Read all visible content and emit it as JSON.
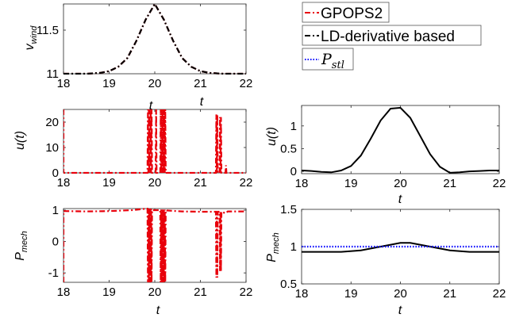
{
  "legend": {
    "entries": [
      {
        "label": "GPOPS2",
        "color": "#e8000b",
        "dash": "dashdot"
      },
      {
        "label": "LD-derivative based",
        "color": "#000000",
        "dash": "dashdot"
      },
      {
        "label_main": "P",
        "label_sub": "stl",
        "color": "#0000ff",
        "dash": "dot"
      }
    ]
  },
  "chart_data": [
    {
      "id": "vwind",
      "type": "line",
      "xlabel": "t",
      "ylabel_main": "v",
      "ylabel_sub": "wind",
      "xlim": [
        18,
        22
      ],
      "ylim": [
        11,
        11.8
      ],
      "xticks": [
        18,
        19,
        20,
        21,
        22
      ],
      "yticks": [
        11,
        11.5
      ],
      "series": [
        {
          "name": "GPOPS2",
          "color": "#e8000b",
          "dash": "dashdot",
          "x": [
            18,
            18.5,
            18.8,
            19.0,
            19.2,
            19.4,
            19.6,
            19.8,
            20.0,
            20.2,
            20.4,
            20.6,
            20.8,
            21.0,
            21.2,
            21.5,
            22
          ],
          "y": [
            11.0,
            11.0,
            11.01,
            11.03,
            11.08,
            11.18,
            11.38,
            11.62,
            11.8,
            11.62,
            11.38,
            11.18,
            11.08,
            11.03,
            11.01,
            11.0,
            11.0
          ]
        },
        {
          "name": "LD-derivative based",
          "color": "#000000",
          "dash": "dashdot",
          "x": [
            18,
            18.5,
            18.8,
            19.0,
            19.2,
            19.4,
            19.6,
            19.8,
            20.0,
            20.2,
            20.4,
            20.6,
            20.8,
            21.0,
            21.2,
            21.5,
            22
          ],
          "y": [
            11.0,
            11.0,
            11.01,
            11.03,
            11.08,
            11.18,
            11.38,
            11.62,
            11.8,
            11.62,
            11.38,
            11.18,
            11.08,
            11.03,
            11.01,
            11.0,
            11.0
          ]
        }
      ]
    },
    {
      "id": "u_gpops",
      "type": "line",
      "xlabel": "t",
      "ylabel": "u(t)",
      "xlim": [
        18,
        22
      ],
      "ylim": [
        0,
        25
      ],
      "xticks": [
        18,
        19,
        20,
        21,
        22
      ],
      "yticks": [
        0,
        10,
        20
      ],
      "series": [
        {
          "name": "GPOPS2",
          "color": "#e8000b",
          "dash": "dashdot",
          "x": [
            18.0,
            18.0,
            18.01,
            19.84,
            19.85,
            19.86,
            19.87,
            19.88,
            19.89,
            19.9,
            19.91,
            19.92,
            19.93,
            19.94,
            19.95,
            20.0,
            20.02,
            20.03,
            20.04,
            20.05,
            20.12,
            20.13,
            20.14,
            20.15,
            20.16,
            20.17,
            20.18,
            20.19,
            20.2,
            20.21,
            20.22,
            20.23,
            20.24,
            20.25,
            20.3,
            21.34,
            21.35,
            21.36,
            21.37,
            21.38,
            21.42,
            21.43,
            21.44,
            21.45,
            21.46,
            21.55,
            21.56,
            21.57,
            22.0
          ],
          "y": [
            25,
            0,
            0,
            0,
            25,
            0,
            25,
            0,
            25,
            0,
            25,
            0,
            25,
            0,
            0,
            0,
            0,
            25,
            0,
            0,
            0,
            25,
            0,
            25,
            0,
            25,
            0,
            25,
            0,
            25,
            0,
            25,
            0,
            0,
            0,
            0,
            23,
            0,
            23,
            0,
            0,
            22,
            0,
            22,
            0,
            0,
            3,
            0,
            0
          ]
        }
      ]
    },
    {
      "id": "u_ld",
      "type": "line",
      "xlabel": "t",
      "ylabel": "u(t)",
      "xlim": [
        18,
        22
      ],
      "ylim": [
        -0.05,
        1.45
      ],
      "xticks": [
        18,
        19,
        20,
        21,
        22
      ],
      "yticks": [
        0,
        0.5,
        1
      ],
      "series": [
        {
          "name": "LD-derivative based",
          "color": "#000000",
          "dash": "solid",
          "x": [
            18.0,
            18.2,
            18.4,
            18.6,
            18.8,
            19.0,
            19.2,
            19.4,
            19.6,
            19.8,
            20.0,
            20.2,
            20.4,
            20.6,
            20.8,
            21.0,
            21.2,
            21.4,
            21.6,
            21.8,
            22.0
          ],
          "y": [
            0.02,
            0.01,
            -0.01,
            -0.02,
            0.02,
            0.12,
            0.35,
            0.72,
            1.12,
            1.38,
            1.4,
            1.18,
            0.78,
            0.38,
            0.1,
            -0.03,
            -0.02,
            0.0,
            0.01,
            0.02,
            0.02
          ]
        }
      ]
    },
    {
      "id": "pmech_gpops",
      "type": "line",
      "xlabel": "t",
      "ylabel_main": "P",
      "ylabel_sub": "mech",
      "xlim": [
        18,
        22
      ],
      "ylim": [
        -1.3,
        1.05
      ],
      "xticks": [
        18,
        19,
        20,
        21,
        22
      ],
      "yticks": [
        -1,
        0,
        1
      ],
      "series": [
        {
          "name": "GPOPS2",
          "color": "#e8000b",
          "dash": "dashdot",
          "x": [
            18.0,
            18.0,
            18.03,
            18.5,
            19.0,
            19.5,
            19.84,
            19.85,
            19.86,
            19.87,
            19.88,
            19.89,
            19.9,
            19.91,
            19.92,
            19.93,
            19.94,
            20.0,
            20.12,
            20.13,
            20.14,
            20.15,
            20.16,
            20.17,
            20.18,
            20.19,
            20.2,
            20.21,
            20.22,
            20.23,
            20.24,
            20.26,
            20.6,
            21.0,
            21.34,
            21.35,
            21.36,
            21.37,
            21.38,
            21.42,
            21.43,
            21.44,
            21.45,
            21.46,
            21.55,
            21.6,
            22.0
          ],
          "y": [
            -1.3,
            0.97,
            0.97,
            0.96,
            0.97,
            1.0,
            1.05,
            -1.3,
            1.05,
            -1.3,
            1.05,
            -1.3,
            1.05,
            -1.3,
            1.05,
            -1.3,
            1.0,
            1.0,
            1.0,
            -1.3,
            1.02,
            -1.3,
            1.02,
            -1.3,
            1.02,
            -1.3,
            1.02,
            -1.3,
            1.02,
            -1.3,
            1.0,
            0.99,
            0.96,
            0.95,
            0.95,
            -1.15,
            0.95,
            -1.15,
            0.95,
            0.95,
            -0.95,
            0.95,
            -0.95,
            0.95,
            0.9,
            0.96,
            0.96
          ]
        }
      ]
    },
    {
      "id": "pmech_ld",
      "type": "line",
      "xlabel": "t",
      "ylabel_main": "P",
      "ylabel_sub": "mech",
      "xlim": [
        18,
        22
      ],
      "ylim": [
        0.5,
        1.5
      ],
      "xticks": [
        18,
        19,
        20,
        21,
        22
      ],
      "yticks": [
        0.5,
        1,
        1.5
      ],
      "series": [
        {
          "name": "LD-derivative based",
          "color": "#000000",
          "dash": "solid",
          "x": [
            18.0,
            18.4,
            18.8,
            19.2,
            19.6,
            20.0,
            20.2,
            20.6,
            21.0,
            21.4,
            21.8,
            22.0
          ],
          "y": [
            0.93,
            0.93,
            0.93,
            0.95,
            1.0,
            1.05,
            1.05,
            1.0,
            0.95,
            0.93,
            0.93,
            0.93
          ]
        },
        {
          "name": "P_stl",
          "color": "#0000ff",
          "dash": "dot",
          "x": [
            18.0,
            22.0
          ],
          "y": [
            1.0,
            1.0
          ]
        }
      ]
    }
  ]
}
